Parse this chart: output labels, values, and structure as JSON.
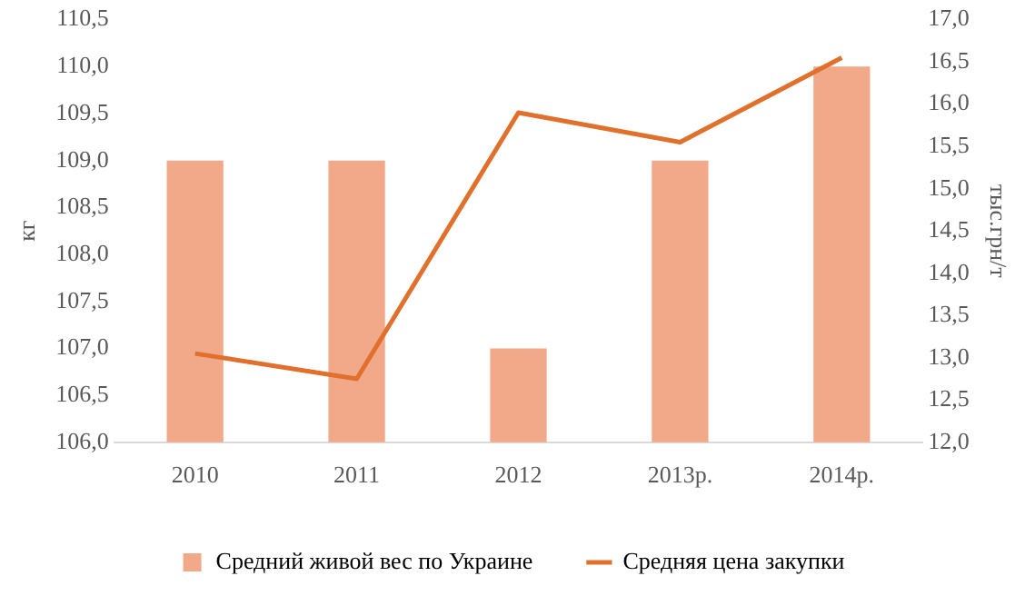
{
  "chart_data": {
    "type": "bar",
    "categories": [
      "2010",
      "2011",
      "2012",
      "2013р.",
      "2014р."
    ],
    "ylabel": "кг",
    "y2label": "тыс.грн/т",
    "series": [
      {
        "name": "Средний живой вес по Украине",
        "color": "#f2a98a",
        "values": [
          109,
          109,
          107,
          109,
          110
        ]
      },
      {
        "name": "Средняя цена закупки",
        "type": "line",
        "axis": "y2",
        "color": "#e0702c",
        "values": [
          13.05,
          12.75,
          15.9,
          15.55,
          16.55
        ]
      }
    ],
    "ylim": [
      106,
      110.5
    ],
    "yticks": [
      {
        "value": 106,
        "label": "106,0"
      },
      {
        "value": 106.5,
        "label": "106,5"
      },
      {
        "value": 107,
        "label": "107,0"
      },
      {
        "value": 107.5,
        "label": "107,5"
      },
      {
        "value": 108,
        "label": "108,0"
      },
      {
        "value": 108.5,
        "label": "108,5"
      },
      {
        "value": 109,
        "label": "109,0"
      },
      {
        "value": 109.5,
        "label": "109,5"
      },
      {
        "value": 110,
        "label": "110,0"
      },
      {
        "value": 110.5,
        "label": "110,5"
      }
    ],
    "y2lim": [
      12,
      17
    ],
    "y2ticks": [
      {
        "value": 12,
        "label": "12,0"
      },
      {
        "value": 12.5,
        "label": "12,5"
      },
      {
        "value": 13,
        "label": "13,0"
      },
      {
        "value": 13.5,
        "label": "13,5"
      },
      {
        "value": 14,
        "label": "14,0"
      },
      {
        "value": 14.5,
        "label": "14,5"
      },
      {
        "value": 15,
        "label": "15,0"
      },
      {
        "value": 15.5,
        "label": "15,5"
      },
      {
        "value": 16,
        "label": "16,0"
      },
      {
        "value": 16.5,
        "label": "16,5"
      },
      {
        "value": 17,
        "label": "17,0"
      }
    ],
    "grid": false,
    "legend": "bottom",
    "marker": "none",
    "line_style": "solid"
  }
}
